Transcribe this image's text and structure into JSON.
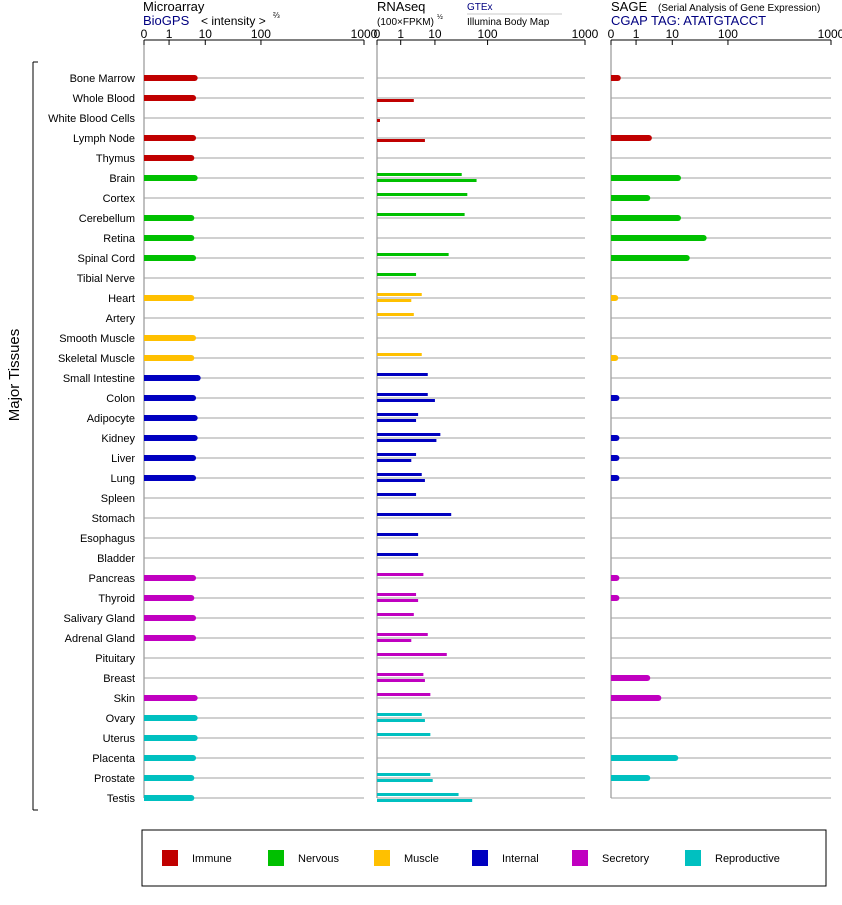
{
  "colors": {
    "Immune": "#c00000",
    "Nervous": "#00c000",
    "Muscle": "#ffc000",
    "Internal": "#0000c0",
    "Secretory": "#c000c0",
    "Reproductive": "#00c0c0",
    "blue_text": "#000080"
  },
  "y_axis_label": "Major Tissues",
  "panels": {
    "microarray": {
      "title": "Microarray",
      "source": "BioGPS",
      "unit_prefix": "< intensity >",
      "unit_exponent": "2/3",
      "ticks": [
        "0",
        "1",
        "10",
        "100",
        "1000"
      ]
    },
    "rnaseq": {
      "title": "RNAseq",
      "unit": "(100×FPKM)",
      "unit_exponent": "1/2",
      "legend_gtex": "GTEx",
      "legend_illumina": "Illumina Body Map",
      "ticks": [
        "0",
        "1",
        "10",
        "100",
        "1000"
      ]
    },
    "sage": {
      "title": "SAGE",
      "subtitle": "(Serial Analysis of Gene Expression)",
      "tag_text": "CGAP TAG: ATATGTACCT",
      "ticks": [
        "0",
        "1",
        "10",
        "100",
        "1000"
      ]
    }
  },
  "legend": [
    {
      "label": "Immune",
      "key": "Immune"
    },
    {
      "label": "Nervous",
      "key": "Nervous"
    },
    {
      "label": "Muscle",
      "key": "Muscle"
    },
    {
      "label": "Internal",
      "key": "Internal"
    },
    {
      "label": "Secretory",
      "key": "Secretory"
    },
    {
      "label": "Reproductive",
      "key": "Reproductive"
    }
  ],
  "chart_data": {
    "type": "bar",
    "orientation": "horizontal",
    "x_scale": "power (ticks 0, 1, 10, 100, 1000)",
    "xlim": [
      0,
      1000
    ],
    "tissues": [
      {
        "name": "Bone Marrow",
        "group": "Immune",
        "microarray": 6,
        "rnaseq_gtex": null,
        "rnaseq_ibm": null,
        "sage": 0.02
      },
      {
        "name": "Whole Blood",
        "group": "Immune",
        "microarray": 5.5,
        "rnaseq_gtex": null,
        "rnaseq_ibm": 3,
        "sage": null
      },
      {
        "name": "White Blood Cells",
        "group": "Immune",
        "microarray": null,
        "rnaseq_gtex": null,
        "rnaseq_ibm": 0.002,
        "sage": null
      },
      {
        "name": "Lymph Node",
        "group": "Immune",
        "microarray": 5.5,
        "rnaseq_gtex": null,
        "rnaseq_ibm": 6,
        "sage": 2.8
      },
      {
        "name": "Thymus",
        "group": "Immune",
        "microarray": 5,
        "rnaseq_gtex": null,
        "rnaseq_ibm": null,
        "sage": null
      },
      {
        "name": "Brain",
        "group": "Nervous",
        "microarray": 6,
        "rnaseq_gtex": 40,
        "rnaseq_ibm": 70,
        "sage": 14
      },
      {
        "name": "Cortex",
        "group": "Nervous",
        "microarray": null,
        "rnaseq_gtex": 50,
        "rnaseq_ibm": null,
        "sage": 2.5
      },
      {
        "name": "Cerebellum",
        "group": "Nervous",
        "microarray": 5,
        "rnaseq_gtex": 45,
        "rnaseq_ibm": null,
        "sage": 14
      },
      {
        "name": "Retina",
        "group": "Nervous",
        "microarray": 5,
        "rnaseq_gtex": null,
        "rnaseq_ibm": null,
        "sage": 45
      },
      {
        "name": "Spinal Cord",
        "group": "Nervous",
        "microarray": 5.5,
        "rnaseq_gtex": 22,
        "rnaseq_ibm": null,
        "sage": 22
      },
      {
        "name": "Tibial Nerve",
        "group": "Nervous",
        "microarray": null,
        "rnaseq_gtex": 3.5,
        "rnaseq_ibm": null,
        "sage": null
      },
      {
        "name": "Heart",
        "group": "Muscle",
        "microarray": 5,
        "rnaseq_gtex": 5,
        "rnaseq_ibm": 2.5,
        "sage": 0.005
      },
      {
        "name": "Artery",
        "group": "Muscle",
        "microarray": null,
        "rnaseq_gtex": 3,
        "rnaseq_ibm": null,
        "sage": null
      },
      {
        "name": "Smooth Muscle",
        "group": "Muscle",
        "microarray": 5.5,
        "rnaseq_gtex": null,
        "rnaseq_ibm": null,
        "sage": null
      },
      {
        "name": "Skeletal Muscle",
        "group": "Muscle",
        "microarray": 5,
        "rnaseq_gtex": 5,
        "rnaseq_ibm": null,
        "sage": 0.005
      },
      {
        "name": "Small Intestine",
        "group": "Internal",
        "microarray": 7,
        "rnaseq_gtex": 7,
        "rnaseq_ibm": null,
        "sage": null
      },
      {
        "name": "Colon",
        "group": "Internal",
        "microarray": 5.5,
        "rnaseq_gtex": 7,
        "rnaseq_ibm": 10,
        "sage": 0.01
      },
      {
        "name": "Adipocyte",
        "group": "Internal",
        "microarray": 6,
        "rnaseq_gtex": 4,
        "rnaseq_ibm": 3.5,
        "sage": null
      },
      {
        "name": "Kidney",
        "group": "Internal",
        "microarray": 6,
        "rnaseq_gtex": 14,
        "rnaseq_ibm": 11,
        "sage": 0.01
      },
      {
        "name": "Liver",
        "group": "Internal",
        "microarray": 5.5,
        "rnaseq_gtex": 3.5,
        "rnaseq_ibm": 2.5,
        "sage": 0.01
      },
      {
        "name": "Lung",
        "group": "Internal",
        "microarray": 5.5,
        "rnaseq_gtex": 5,
        "rnaseq_ibm": 6,
        "sage": 0.01
      },
      {
        "name": "Spleen",
        "group": "Internal",
        "microarray": null,
        "rnaseq_gtex": 3.5,
        "rnaseq_ibm": null,
        "sage": null
      },
      {
        "name": "Stomach",
        "group": "Internal",
        "microarray": null,
        "rnaseq_gtex": 25,
        "rnaseq_ibm": null,
        "sage": null
      },
      {
        "name": "Esophagus",
        "group": "Internal",
        "microarray": null,
        "rnaseq_gtex": 4,
        "rnaseq_ibm": null,
        "sage": null
      },
      {
        "name": "Bladder",
        "group": "Internal",
        "microarray": null,
        "rnaseq_gtex": 4,
        "rnaseq_ibm": null,
        "sage": null
      },
      {
        "name": "Pancreas",
        "group": "Secretory",
        "microarray": 5.5,
        "rnaseq_gtex": 5.5,
        "rnaseq_ibm": null,
        "sage": 0.01
      },
      {
        "name": "Thyroid",
        "group": "Secretory",
        "microarray": 5,
        "rnaseq_gtex": 3.5,
        "rnaseq_ibm": 4,
        "sage": 0.01
      },
      {
        "name": "Salivary Gland",
        "group": "Secretory",
        "microarray": 5.5,
        "rnaseq_gtex": 3,
        "rnaseq_ibm": null,
        "sage": null
      },
      {
        "name": "Adrenal Gland",
        "group": "Secretory",
        "microarray": 5.5,
        "rnaseq_gtex": 7,
        "rnaseq_ibm": 2.5,
        "sage": null
      },
      {
        "name": "Pituitary",
        "group": "Secretory",
        "microarray": null,
        "rnaseq_gtex": 20,
        "rnaseq_ibm": null,
        "sage": null
      },
      {
        "name": "Breast",
        "group": "Secretory",
        "microarray": null,
        "rnaseq_gtex": 5.5,
        "rnaseq_ibm": 6,
        "sage": 2.5
      },
      {
        "name": "Skin",
        "group": "Secretory",
        "microarray": 6,
        "rnaseq_gtex": 8,
        "rnaseq_ibm": null,
        "sage": 5
      },
      {
        "name": "Ovary",
        "group": "Reproductive",
        "microarray": 6,
        "rnaseq_gtex": 5,
        "rnaseq_ibm": 6,
        "sage": null
      },
      {
        "name": "Uterus",
        "group": "Reproductive",
        "microarray": 6,
        "rnaseq_gtex": 8,
        "rnaseq_ibm": null,
        "sage": null
      },
      {
        "name": "Placenta",
        "group": "Reproductive",
        "microarray": 5.5,
        "rnaseq_gtex": null,
        "rnaseq_ibm": null,
        "sage": 12
      },
      {
        "name": "Prostate",
        "group": "Reproductive",
        "microarray": 5,
        "rnaseq_gtex": 8,
        "rnaseq_ibm": 9,
        "sage": 2.5
      },
      {
        "name": "Testis",
        "group": "Reproductive",
        "microarray": 5,
        "rnaseq_gtex": 35,
        "rnaseq_ibm": 60,
        "sage": null
      }
    ]
  }
}
